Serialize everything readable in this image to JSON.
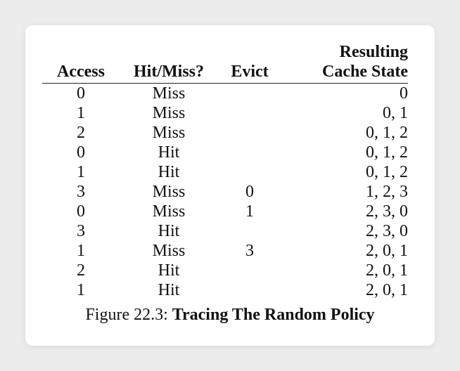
{
  "table": {
    "headers": {
      "access": "Access",
      "hitmiss": "Hit/Miss?",
      "evict": "Evict",
      "state_line1": "Resulting",
      "state_line2": "Cache State"
    },
    "rows": [
      {
        "access": "0",
        "hitmiss": "Miss",
        "evict": "",
        "state": "0"
      },
      {
        "access": "1",
        "hitmiss": "Miss",
        "evict": "",
        "state": "0, 1"
      },
      {
        "access": "2",
        "hitmiss": "Miss",
        "evict": "",
        "state": "0, 1, 2"
      },
      {
        "access": "0",
        "hitmiss": "Hit",
        "evict": "",
        "state": "0, 1, 2"
      },
      {
        "access": "1",
        "hitmiss": "Hit",
        "evict": "",
        "state": "0, 1, 2"
      },
      {
        "access": "3",
        "hitmiss": "Miss",
        "evict": "0",
        "state": "1, 2, 3"
      },
      {
        "access": "0",
        "hitmiss": "Miss",
        "evict": "1",
        "state": "2, 3, 0"
      },
      {
        "access": "3",
        "hitmiss": "Hit",
        "evict": "",
        "state": "2, 3, 0"
      },
      {
        "access": "1",
        "hitmiss": "Miss",
        "evict": "3",
        "state": "2, 0, 1"
      },
      {
        "access": "2",
        "hitmiss": "Hit",
        "evict": "",
        "state": "2, 0, 1"
      },
      {
        "access": "1",
        "hitmiss": "Hit",
        "evict": "",
        "state": "2, 0, 1"
      }
    ]
  },
  "caption": {
    "prefix": "Figure 22.3: ",
    "title": "Tracing The Random Policy"
  }
}
